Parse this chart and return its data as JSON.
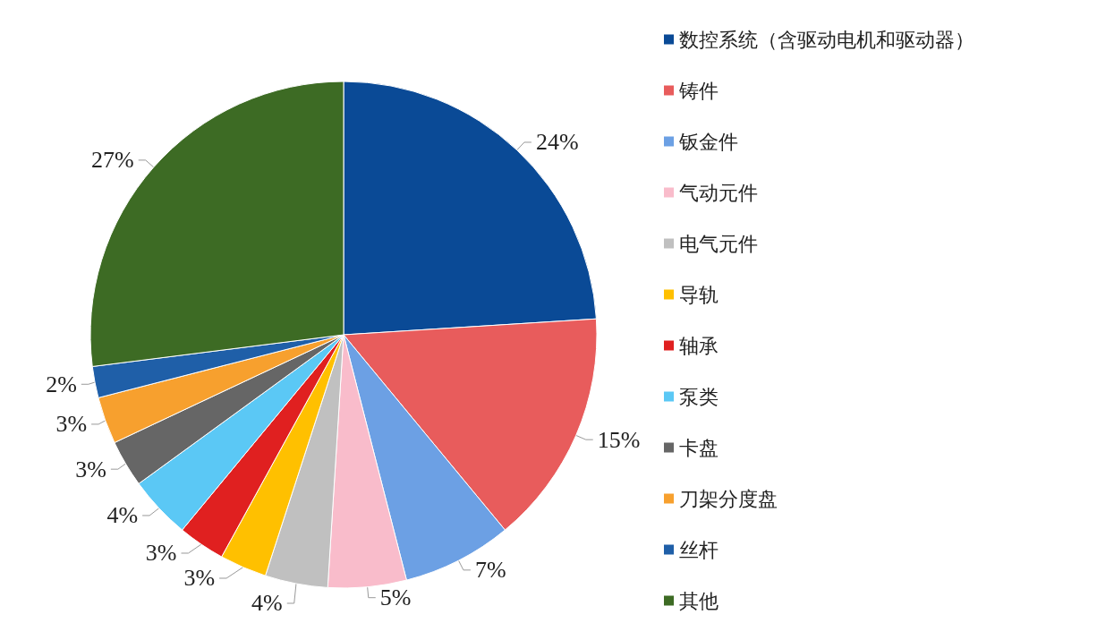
{
  "chart_data": {
    "type": "pie",
    "categories": [
      "数控系统（含驱动电机和驱动器）",
      "铸件",
      "钣金件",
      "气动元件",
      "电气元件",
      "导轨",
      "轴承",
      "泵类",
      "卡盘",
      "刀架分度盘",
      "丝杆",
      "其他"
    ],
    "values": [
      24,
      15,
      7,
      5,
      4,
      3,
      3,
      4,
      3,
      3,
      2,
      27
    ],
    "value_labels": [
      "24%",
      "15%",
      "7%",
      "5%",
      "4%",
      "3%",
      "3%",
      "4%",
      "3%",
      "3%",
      "2%",
      "27%"
    ],
    "colors": [
      "#0a4a96",
      "#e85c5c",
      "#6ca0e4",
      "#f9bccb",
      "#c0c0c0",
      "#ffc000",
      "#e02020",
      "#5bc8f5",
      "#666666",
      "#f7a02e",
      "#1f5fa8",
      "#3d6b24"
    ],
    "legend": "right"
  }
}
